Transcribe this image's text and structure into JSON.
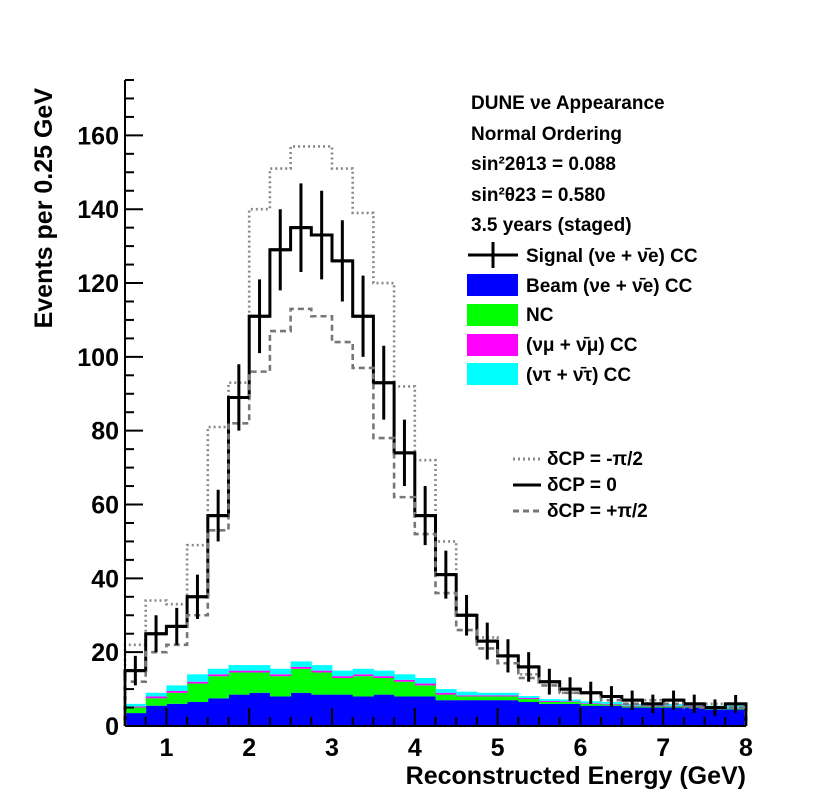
{
  "chart_data": {
    "type": "histogram",
    "title": "",
    "xlabel": "Reconstructed Energy (GeV)",
    "ylabel": "Events per 0.25 GeV",
    "xlim": [
      0.5,
      8
    ],
    "ylim": [
      0,
      175
    ],
    "xticks": [
      "1",
      "2",
      "3",
      "4",
      "5",
      "6",
      "7",
      "8"
    ],
    "yticks": [
      "0",
      "20",
      "40",
      "60",
      "80",
      "100",
      "120",
      "140",
      "160"
    ],
    "bin_edges": [
      0.5,
      0.75,
      1.0,
      1.25,
      1.5,
      1.75,
      2.0,
      2.25,
      2.5,
      2.75,
      3.0,
      3.25,
      3.5,
      3.75,
      4.0,
      4.25,
      4.5,
      4.75,
      5.0,
      5.25,
      5.5,
      5.75,
      6.0,
      6.25,
      6.5,
      6.75,
      7.0,
      7.25,
      7.5,
      7.75,
      8.0
    ],
    "stacked_series": [
      {
        "name": "Beam (νe + ν̄e) CC",
        "color": "#0000ff",
        "values": [
          3.5,
          5.5,
          6,
          6.5,
          7.5,
          8.5,
          9,
          8,
          9,
          8.5,
          8.5,
          8,
          8.5,
          8,
          8,
          7,
          7,
          7,
          7,
          6.5,
          6,
          6,
          5.5,
          5.5,
          5,
          5,
          5,
          5,
          4.5,
          4.5
        ]
      },
      {
        "name": "NC",
        "color": "#00ff00",
        "values": [
          1.5,
          2,
          3,
          5,
          6,
          6,
          5.5,
          5.5,
          6.5,
          6,
          4.5,
          5.5,
          4.5,
          4,
          3,
          1.5,
          1,
          1,
          1,
          0.8,
          0.5,
          0.5,
          0.5,
          0.3,
          0.3,
          0.3,
          0.3,
          0.3,
          0.3,
          0.3
        ]
      },
      {
        "name": "(νμ + ν̄μ) CC",
        "color": "#ff00ff",
        "values": [
          0.3,
          0.5,
          0.5,
          0.5,
          0.5,
          0.5,
          0.5,
          0.5,
          0.5,
          0.5,
          0.5,
          0.5,
          0.5,
          0.5,
          0.5,
          0.5,
          0.3,
          0.3,
          0.3,
          0.3,
          0.3,
          0.2,
          0.2,
          0.2,
          0.2,
          0.2,
          0.2,
          0.2,
          0.2,
          0.2
        ]
      },
      {
        "name": "(ντ + ν̄τ) CC",
        "color": "#00ffff",
        "values": [
          0.7,
          1,
          1.5,
          2,
          1.5,
          1.5,
          1.5,
          1.5,
          1.5,
          1.5,
          1.5,
          1.5,
          1.5,
          1.5,
          1.5,
          1,
          1,
          0.7,
          0.7,
          0.5,
          0.5,
          0.5,
          0.5,
          0.5,
          0.5,
          0.5,
          0.5,
          0.5,
          0.5,
          0.5
        ]
      }
    ],
    "lines": [
      {
        "name": "δCP = -π/2",
        "style": "dotted",
        "color": "#888888",
        "values": [
          22,
          34,
          33,
          49,
          81,
          93,
          140,
          151,
          157,
          157,
          151,
          139,
          120,
          92,
          72,
          50,
          30,
          24,
          19,
          14,
          12,
          9,
          9,
          8,
          7,
          7,
          7,
          6,
          6,
          6
        ]
      },
      {
        "name": "δCP = 0",
        "style": "solid",
        "color": "#000000",
        "values": [
          15,
          25,
          27,
          35,
          57,
          89,
          111,
          129,
          135,
          133,
          126,
          111,
          93,
          74,
          57,
          41,
          30,
          23,
          19,
          16,
          12,
          10,
          9,
          8,
          7,
          6,
          7,
          6,
          5,
          6
        ]
      },
      {
        "name": "δCP = +π/2",
        "style": "dashed",
        "color": "#777777",
        "values": [
          12,
          20,
          22,
          30,
          53,
          82,
          96,
          107,
          113,
          111,
          104,
          97,
          78,
          62,
          52,
          36,
          26,
          21,
          17,
          13,
          11,
          9,
          9,
          7,
          6,
          6,
          6,
          5,
          5,
          5
        ]
      }
    ],
    "signal_errors": [
      4,
      5,
      5,
      6,
      7,
      9,
      10,
      11,
      12,
      12,
      11,
      11,
      10,
      9,
      8,
      6.5,
      5.5,
      5,
      4.5,
      4,
      3.5,
      3.2,
      3,
      2.8,
      2.6,
      2.5,
      2.6,
      2.5,
      2.2,
      2.4
    ],
    "annotations": [
      "DUNE νe Appearance",
      "Normal Ordering",
      "sin²2θ13 = 0.088",
      "sin²θ23 = 0.580",
      "3.5 years (staged)"
    ],
    "legend_entries": [
      "Signal (νe + ν̄e) CC",
      "Beam (νe + ν̄e) CC",
      "NC",
      "(νμ + ν̄μ) CC",
      "(ντ + ν̄τ) CC"
    ],
    "legend_placement": "top-right"
  }
}
